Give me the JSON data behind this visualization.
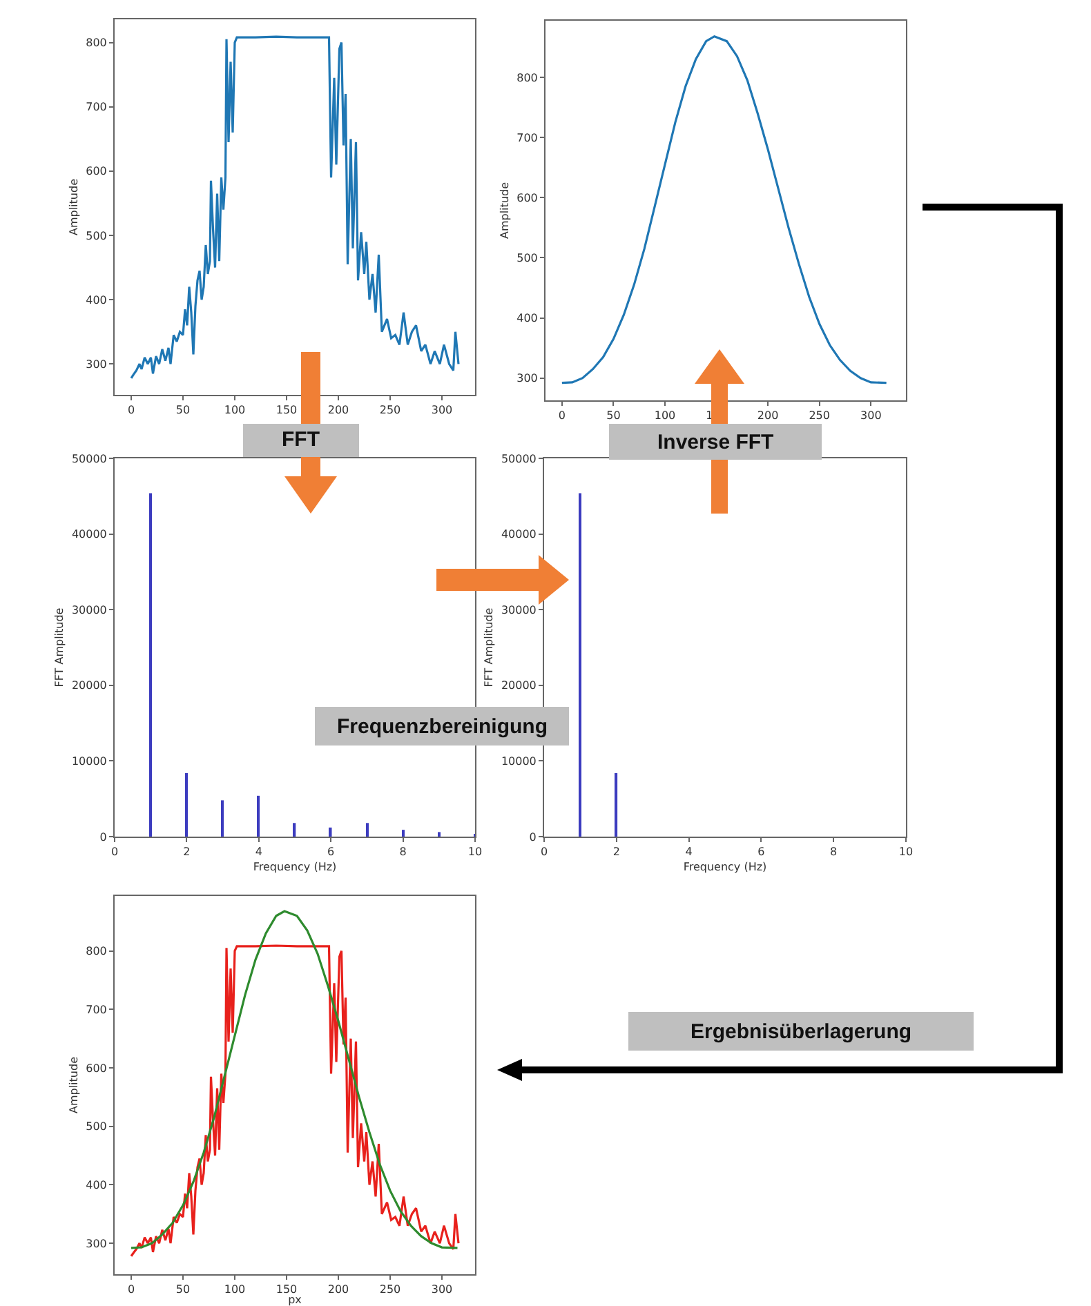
{
  "chart_data": [
    {
      "type": "line",
      "ylabel": "Amplitude",
      "xlim": [
        -16,
        332
      ],
      "ylim": [
        252,
        836
      ],
      "xticks": [
        0,
        50,
        100,
        150,
        200,
        250,
        300
      ],
      "yticks": [
        300,
        400,
        500,
        600,
        700,
        800
      ],
      "series": [
        {
          "color": "#1f77b4",
          "x": [
            0,
            2,
            5,
            8,
            10,
            13,
            16,
            19,
            21,
            24,
            27,
            30,
            33,
            36,
            38,
            41,
            44,
            47,
            50,
            52,
            54,
            56,
            58,
            60,
            62,
            64,
            66,
            68,
            70,
            72,
            74,
            76,
            77,
            79,
            81,
            83,
            85,
            87,
            89,
            91,
            92,
            94,
            96,
            98,
            100,
            102,
            120,
            140,
            160,
            180,
            191,
            193,
            196,
            198,
            201,
            203,
            205,
            207,
            209,
            212,
            214,
            217,
            219,
            222,
            225,
            227,
            230,
            233,
            236,
            239,
            242,
            247,
            251,
            255,
            259,
            263,
            267,
            271,
            275,
            280,
            284,
            289,
            293,
            298,
            302,
            307,
            311,
            313,
            316
          ],
          "values": [
            278,
            283,
            290,
            300,
            292,
            310,
            300,
            310,
            285,
            312,
            300,
            323,
            305,
            325,
            300,
            345,
            335,
            350,
            345,
            385,
            360,
            420,
            380,
            315,
            390,
            430,
            445,
            400,
            420,
            485,
            440,
            460,
            585,
            510,
            450,
            565,
            460,
            590,
            540,
            590,
            805,
            645,
            770,
            660,
            800,
            808,
            808,
            809,
            808,
            808,
            808,
            590,
            745,
            610,
            790,
            800,
            640,
            720,
            455,
            650,
            480,
            645,
            430,
            505,
            440,
            490,
            400,
            440,
            380,
            470,
            350,
            370,
            340,
            345,
            330,
            380,
            330,
            350,
            360,
            320,
            330,
            300,
            320,
            300,
            330,
            300,
            290,
            350,
            300
          ]
        }
      ]
    },
    {
      "type": "line",
      "ylabel": "Amplitude",
      "xlim": [
        -16,
        334
      ],
      "ylim": [
        263,
        894
      ],
      "xticks": [
        0,
        50,
        100,
        150,
        200,
        250,
        300
      ],
      "yticks": [
        300,
        400,
        500,
        600,
        700,
        800
      ],
      "series": [
        {
          "color": "#1f77b4",
          "x": [
            0,
            10,
            20,
            30,
            40,
            50,
            60,
            70,
            80,
            90,
            100,
            110,
            120,
            130,
            140,
            148,
            160,
            170,
            180,
            190,
            200,
            210,
            220,
            230,
            240,
            250,
            260,
            270,
            280,
            290,
            300,
            315
          ],
          "values": [
            292,
            293,
            300,
            315,
            335,
            365,
            405,
            455,
            515,
            585,
            655,
            725,
            785,
            830,
            860,
            868,
            860,
            835,
            795,
            740,
            680,
            615,
            550,
            490,
            435,
            390,
            355,
            330,
            312,
            300,
            293,
            292
          ]
        }
      ]
    },
    {
      "type": "bar",
      "xlabel": "Frequency (Hz)",
      "ylabel": "FFT Amplitude",
      "xlim": [
        0,
        10
      ],
      "ylim": [
        0,
        50000
      ],
      "xticks": [
        0,
        2,
        4,
        6,
        8,
        10
      ],
      "yticks": [
        0,
        10000,
        20000,
        30000,
        40000,
        50000
      ],
      "series": [
        {
          "color": "#3c3cbf",
          "x": [
            1,
            2,
            3,
            4,
            5,
            6,
            7,
            8,
            9,
            10
          ],
          "values": [
            45400,
            8400,
            4800,
            5400,
            1800,
            1200,
            1800,
            900,
            600,
            300
          ]
        }
      ]
    },
    {
      "type": "bar",
      "xlabel": "Frequency (Hz)",
      "ylabel": "FFT Amplitude",
      "xlim": [
        0,
        10
      ],
      "ylim": [
        0,
        50000
      ],
      "xticks": [
        0,
        2,
        4,
        6,
        8,
        10
      ],
      "yticks": [
        0,
        10000,
        20000,
        30000,
        40000,
        50000
      ],
      "series": [
        {
          "color": "#3c3cbf",
          "x": [
            1,
            2
          ],
          "values": [
            45400,
            8400
          ]
        }
      ]
    },
    {
      "type": "line",
      "xlabel": "px",
      "ylabel": "Amplitude",
      "xlim": [
        -16,
        332
      ],
      "ylim": [
        247,
        894
      ],
      "xticks": [
        0,
        50,
        100,
        150,
        200,
        250,
        300
      ],
      "yticks": [
        300,
        400,
        500,
        600,
        700,
        800
      ],
      "series": [
        {
          "color": "#e8211c",
          "x": [
            0,
            2,
            5,
            8,
            10,
            13,
            16,
            19,
            21,
            24,
            27,
            30,
            33,
            36,
            38,
            41,
            44,
            47,
            50,
            52,
            54,
            56,
            58,
            60,
            62,
            64,
            66,
            68,
            70,
            72,
            74,
            76,
            77,
            79,
            81,
            83,
            85,
            87,
            89,
            91,
            92,
            94,
            96,
            98,
            100,
            102,
            120,
            140,
            160,
            180,
            191,
            193,
            196,
            198,
            201,
            203,
            205,
            207,
            209,
            212,
            214,
            217,
            219,
            222,
            225,
            227,
            230,
            233,
            236,
            239,
            242,
            247,
            251,
            255,
            259,
            263,
            267,
            271,
            275,
            280,
            284,
            289,
            293,
            298,
            302,
            307,
            311,
            313,
            316
          ],
          "values": [
            278,
            283,
            290,
            300,
            292,
            310,
            300,
            310,
            285,
            312,
            300,
            323,
            305,
            325,
            300,
            345,
            335,
            350,
            345,
            385,
            360,
            420,
            380,
            315,
            390,
            430,
            445,
            400,
            420,
            485,
            440,
            460,
            585,
            510,
            450,
            565,
            460,
            590,
            540,
            590,
            805,
            645,
            770,
            660,
            800,
            808,
            808,
            809,
            808,
            808,
            808,
            590,
            745,
            610,
            790,
            800,
            640,
            720,
            455,
            650,
            480,
            645,
            430,
            505,
            440,
            490,
            400,
            440,
            380,
            470,
            350,
            370,
            340,
            345,
            330,
            380,
            330,
            350,
            360,
            320,
            330,
            300,
            320,
            300,
            330,
            300,
            290,
            350,
            300
          ]
        },
        {
          "color": "#2e8b2e",
          "x": [
            0,
            10,
            20,
            30,
            40,
            50,
            60,
            70,
            80,
            90,
            100,
            110,
            120,
            130,
            140,
            148,
            160,
            170,
            180,
            190,
            200,
            210,
            220,
            230,
            240,
            250,
            260,
            270,
            280,
            290,
            300,
            315
          ],
          "values": [
            292,
            293,
            300,
            315,
            335,
            365,
            405,
            455,
            515,
            585,
            655,
            725,
            785,
            830,
            860,
            868,
            860,
            835,
            795,
            740,
            680,
            615,
            550,
            490,
            435,
            390,
            355,
            330,
            312,
            300,
            293,
            292
          ]
        }
      ]
    },
    {
      "type": "other",
      "annotations": [
        "FFT",
        "Inverse FFT",
        "Frequenzbereinigung",
        "Ergebnisüberlagerung"
      ]
    }
  ]
}
